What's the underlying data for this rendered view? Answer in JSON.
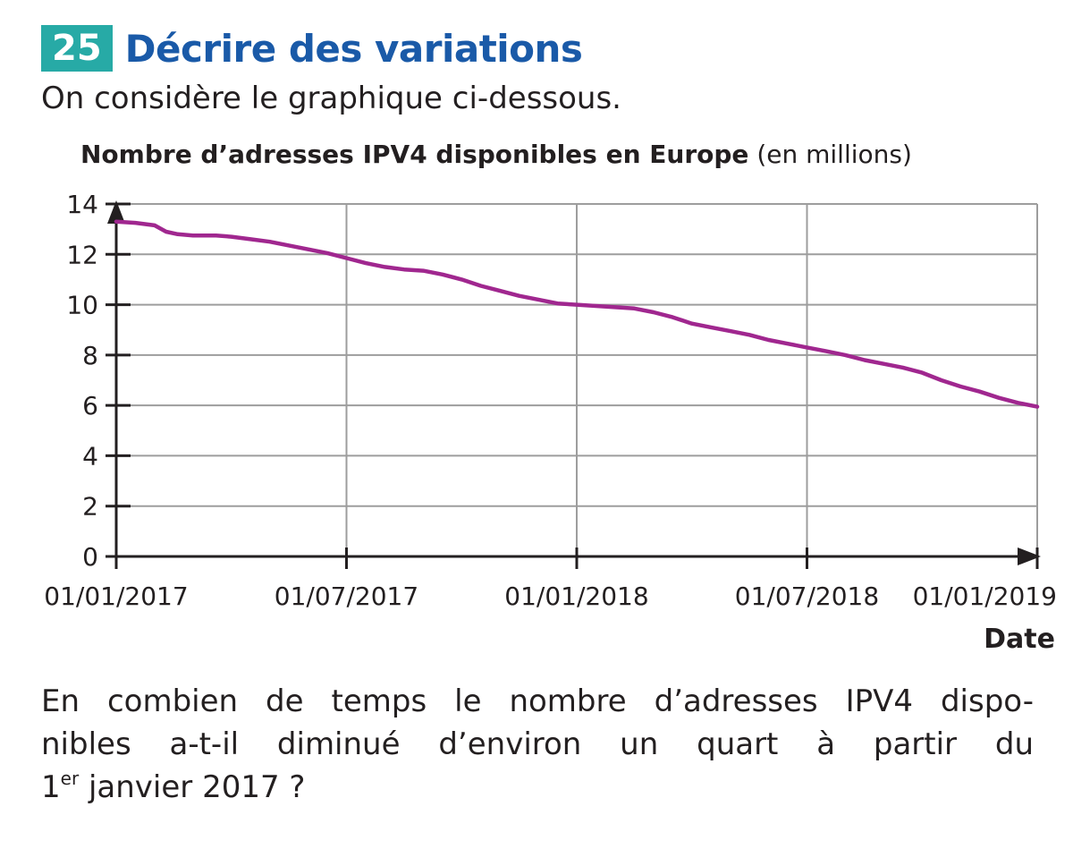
{
  "exercise": {
    "number": "25",
    "title": "Décrire des variations",
    "intro": "On considère le graphique ci-dessous."
  },
  "chart_data": {
    "type": "line",
    "title": "Nombre d’adresses IPV4 disponibles en Europe",
    "title_unit": "(en millions)",
    "xlabel": "Date",
    "ylabel": "",
    "x_ticks": [
      "01/01/2017",
      "01/07/2017",
      "01/01/2018",
      "01/07/2018",
      "01/01/2019"
    ],
    "y_ticks": [
      "0",
      "2",
      "4",
      "6",
      "8",
      "10",
      "12",
      "14"
    ],
    "xlim_months": [
      0,
      24
    ],
    "ylim": [
      0,
      14
    ],
    "grid": true,
    "colors": {
      "line": "#a0278f",
      "grid": "#9d9d9d",
      "axis": "#231f20"
    },
    "series": [
      {
        "name": "Adresses IPV4 disponibles",
        "x_months": [
          0,
          0.5,
          1,
          1.3,
          1.6,
          2,
          2.3,
          2.6,
          3,
          3.5,
          4,
          4.5,
          5,
          5.5,
          6,
          6.5,
          7,
          7.5,
          8,
          8.5,
          9,
          9.5,
          10,
          10.5,
          11,
          11.5,
          12,
          12.5,
          13,
          13.5,
          14,
          14.5,
          15,
          15.5,
          16,
          16.5,
          17,
          17.5,
          18,
          18.5,
          19,
          19.5,
          20,
          20.5,
          21,
          21.5,
          22,
          22.5,
          23,
          23.5,
          24
        ],
        "values": [
          13.3,
          13.25,
          13.15,
          12.9,
          12.8,
          12.75,
          12.75,
          12.75,
          12.7,
          12.6,
          12.5,
          12.35,
          12.2,
          12.05,
          11.85,
          11.65,
          11.5,
          11.4,
          11.35,
          11.2,
          11.0,
          10.75,
          10.55,
          10.35,
          10.2,
          10.05,
          10.0,
          9.95,
          9.9,
          9.85,
          9.7,
          9.5,
          9.25,
          9.1,
          8.95,
          8.8,
          8.6,
          8.45,
          8.3,
          8.15,
          8.0,
          7.8,
          7.65,
          7.5,
          7.3,
          7.0,
          6.75,
          6.55,
          6.3,
          6.1,
          5.95
        ]
      }
    ]
  },
  "question": {
    "line1": "En combien de temps le nombre d’adresses IPV4 dispo-",
    "line2": "nibles a-t-il diminué d’environ un quart à partir du",
    "line3_prefix": "1",
    "line3_sup": "er",
    "line3_rest": " janvier 2017 ?"
  }
}
